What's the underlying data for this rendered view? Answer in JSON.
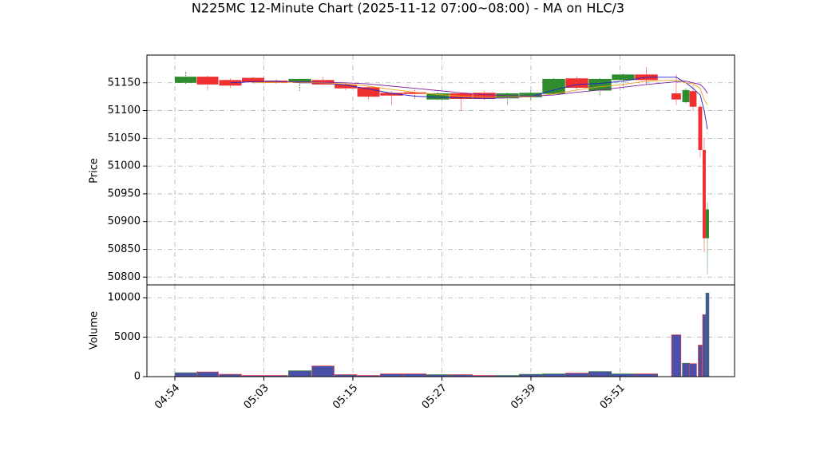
{
  "chart_data": {
    "type": "candlestick",
    "title": "N225MC 12-Minute Chart (2025-11-12 07:00~08:00) - MA on HLC/3",
    "x": [
      0.121,
      0.368,
      0.623,
      0.879,
      1.139,
      1.404,
      1.664,
      1.919,
      2.175,
      2.435,
      2.695,
      2.955,
      3.215,
      3.475,
      3.735,
      3.996,
      4.256,
      4.516,
      4.776,
      5.036,
      5.296,
      5.632,
      5.74,
      5.821,
      5.901,
      5.946,
      5.982
    ],
    "open": [
      51150,
      51161,
      51155,
      51159,
      51154,
      51151,
      51155,
      51147,
      51142,
      51132,
      51133,
      51120,
      51131,
      51132,
      51122,
      51124,
      51130,
      51158,
      51136,
      51155,
      51165,
      51131,
      51115,
      51135,
      51107,
      51029,
      50870
    ],
    "high": [
      51170,
      51162,
      51157,
      51160,
      51156,
      51157,
      51160,
      51150,
      51145,
      51135,
      51137,
      51133,
      51132,
      51135,
      51132,
      51136,
      51158,
      51161,
      51158,
      51166,
      51178,
      51165,
      51140,
      51145,
      51110,
      51050,
      50935
    ],
    "low": [
      51148,
      51137,
      51140,
      51148,
      51148,
      51135,
      51145,
      51137,
      51120,
      51110,
      51120,
      51118,
      51100,
      51118,
      51110,
      51120,
      51127,
      51137,
      51126,
      51138,
      51147,
      51110,
      51113,
      51100,
      51015,
      50845,
      50805
    ],
    "close": [
      51161,
      51147,
      51145,
      51151,
      51150,
      51157,
      51147,
      51140,
      51125,
      51127,
      51130,
      51131,
      51121,
      51121,
      51131,
      51132,
      51157,
      51141,
      51157,
      51165,
      51155,
      51120,
      51137,
      51107,
      51029,
      50870,
      50922
    ],
    "up_color": "#2e8b2e",
    "down_color": "#f03030",
    "ma": [
      {
        "color": "#2020d0",
        "values": [
          null,
          null,
          51150,
          51152,
          51153,
          51150,
          51150,
          51146,
          51139,
          51131,
          51126,
          51124,
          51123,
          51122,
          51123,
          51125,
          51137,
          51147,
          51149,
          51153,
          51160,
          51160,
          51150,
          51140,
          51128,
          51100,
          51066
        ]
      },
      {
        "color": "#f0a020",
        "values": [
          null,
          null,
          null,
          51150,
          51151,
          51151,
          51150,
          51148,
          51144,
          51138,
          51133,
          51129,
          51126,
          51124,
          51124,
          51125,
          51130,
          51137,
          51143,
          51147,
          51153,
          51155,
          51150,
          51148,
          51140,
          51120,
          51110
        ]
      },
      {
        "color": "#8020a0",
        "values": [
          null,
          null,
          null,
          null,
          51152,
          51152,
          51151,
          51150,
          51148,
          51144,
          51140,
          51136,
          51132,
          51129,
          51127,
          51126,
          51128,
          51133,
          51137,
          51142,
          51147,
          51152,
          51153,
          51150,
          51147,
          51140,
          51131
        ]
      }
    ],
    "ylabel": "Price",
    "ylim": [
      50786,
      51200
    ],
    "yticks": [
      50800,
      50850,
      50900,
      50950,
      51000,
      51050,
      51100,
      51150
    ],
    "volume": [
      500,
      600,
      300,
      150,
      150,
      750,
      1350,
      250,
      150,
      350,
      350,
      250,
      250,
      150,
      150,
      300,
      350,
      450,
      650,
      350,
      350,
      5300,
      1700,
      1650,
      4000,
      7850,
      10600
    ],
    "volume_color": "#4a50a8",
    "volume_ylabel": "Volume",
    "volume_ylim": [
      0,
      11630
    ],
    "volume_yticks": [
      0,
      5000,
      10000
    ],
    "xlim": [
      -0.314,
      6.287
    ],
    "xticks": [
      {
        "value": 0,
        "label": "04:54"
      },
      {
        "value": 1,
        "label": "05:03"
      },
      {
        "value": 2,
        "label": "05:15"
      },
      {
        "value": 3,
        "label": "05:27"
      },
      {
        "value": 4,
        "label": "05:39"
      },
      {
        "value": 5,
        "label": "05:51"
      }
    ],
    "grid": true
  }
}
